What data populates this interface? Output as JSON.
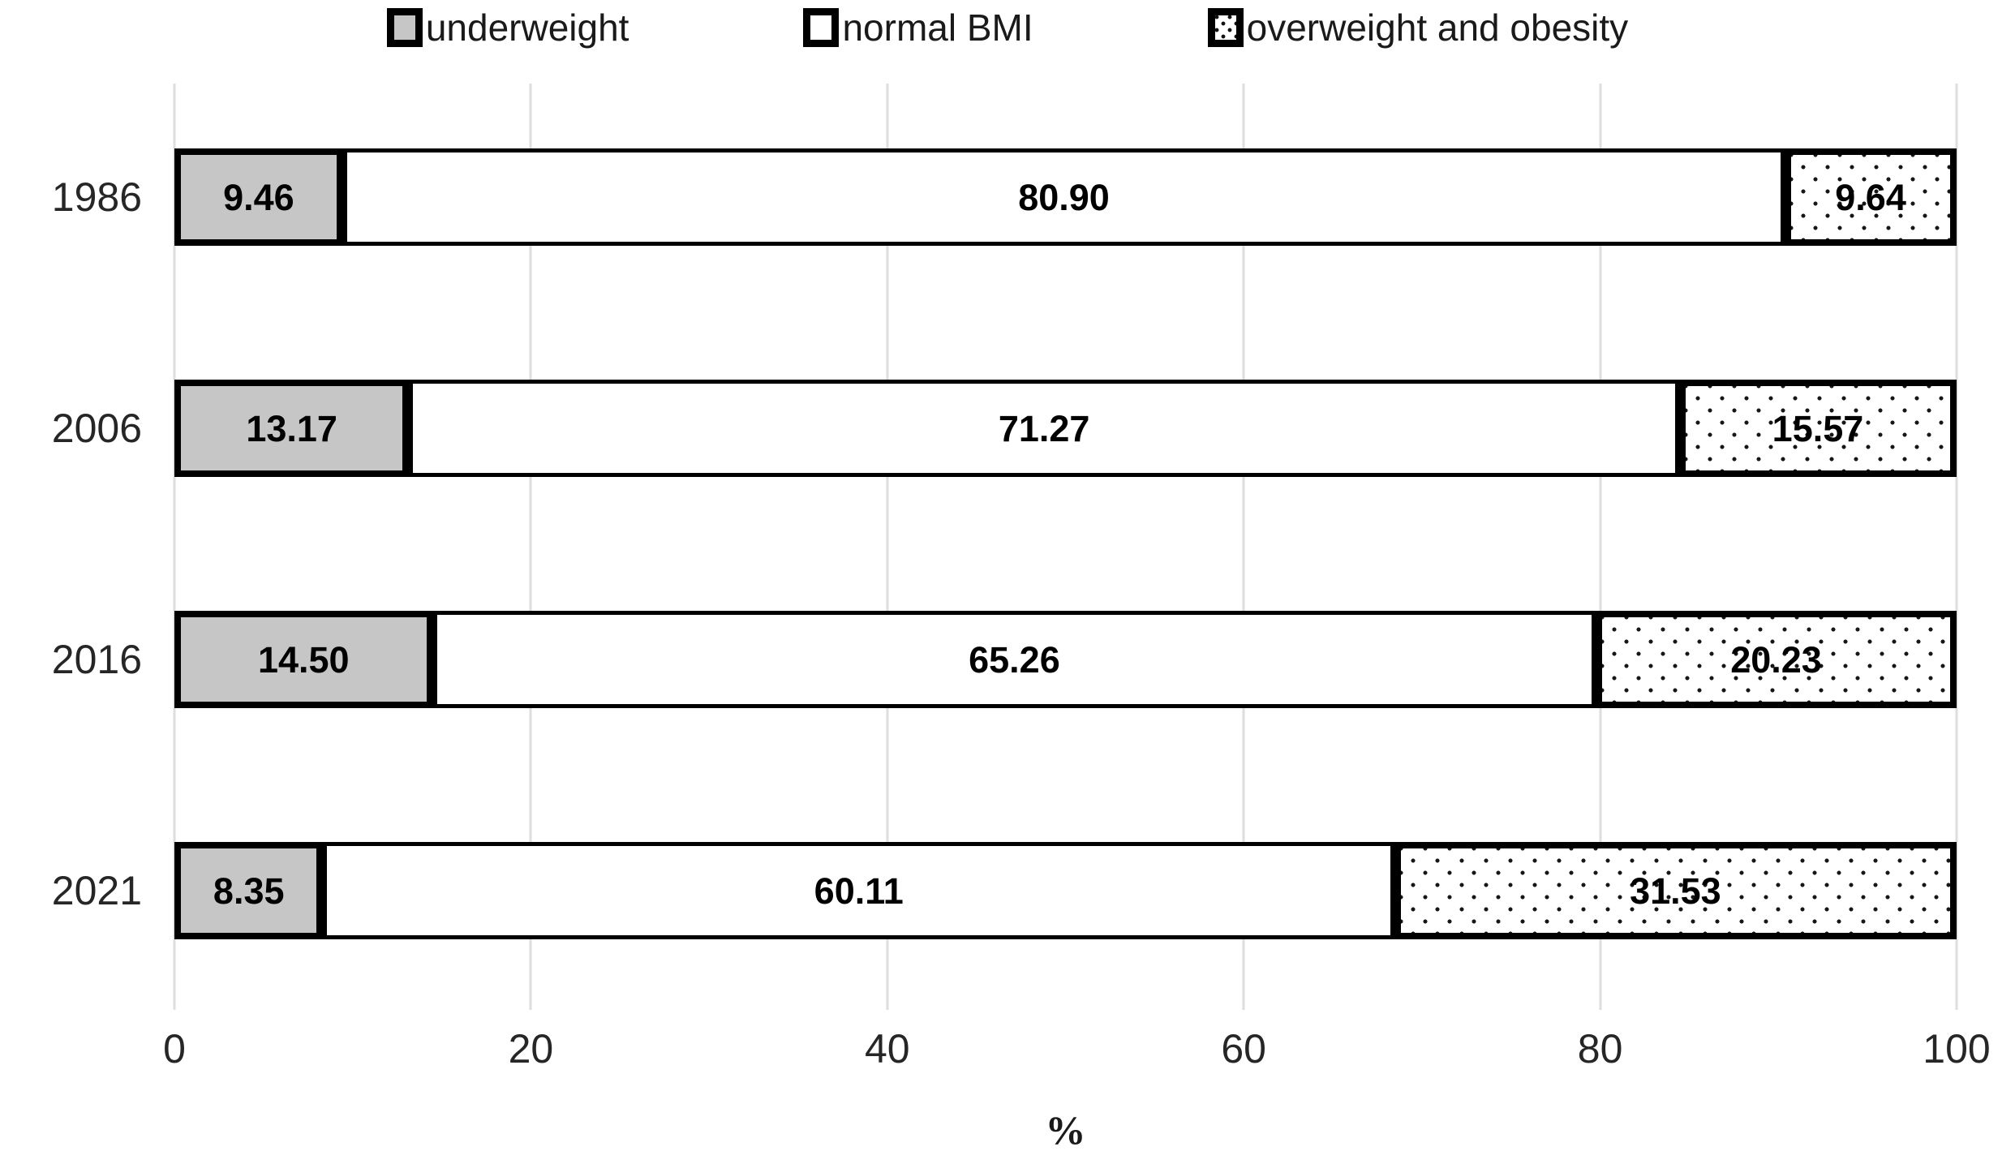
{
  "chart_data": {
    "type": "bar",
    "orientation": "horizontal",
    "stacked": true,
    "title": "",
    "xlabel": "%",
    "ylabel": "",
    "xlim": [
      0,
      100
    ],
    "x_ticks": [
      0,
      20,
      40,
      60,
      80,
      100
    ],
    "grid": "vertical",
    "legend_position": "top",
    "categories": [
      "1986",
      "2006",
      "2016",
      "2021"
    ],
    "series": [
      {
        "name": "underweight",
        "style": "gray",
        "values": [
          9.46,
          13.17,
          14.5,
          8.35
        ]
      },
      {
        "name": "normal BMI",
        "style": "white",
        "values": [
          80.9,
          71.27,
          65.26,
          60.11
        ]
      },
      {
        "name": "overweight and obesity",
        "style": "dotted",
        "values": [
          9.64,
          15.57,
          20.23,
          31.53
        ]
      }
    ],
    "colors": {
      "gray_fill": "#c6c6c6",
      "bar_border": "#000000",
      "gridline": "#dedede",
      "text": "#1a1a1a"
    }
  },
  "legend": {
    "items": [
      {
        "label": "underweight"
      },
      {
        "label": "normal BMI"
      },
      {
        "label": "overweight and obesity"
      }
    ]
  },
  "axis": {
    "xlabel": "%"
  }
}
